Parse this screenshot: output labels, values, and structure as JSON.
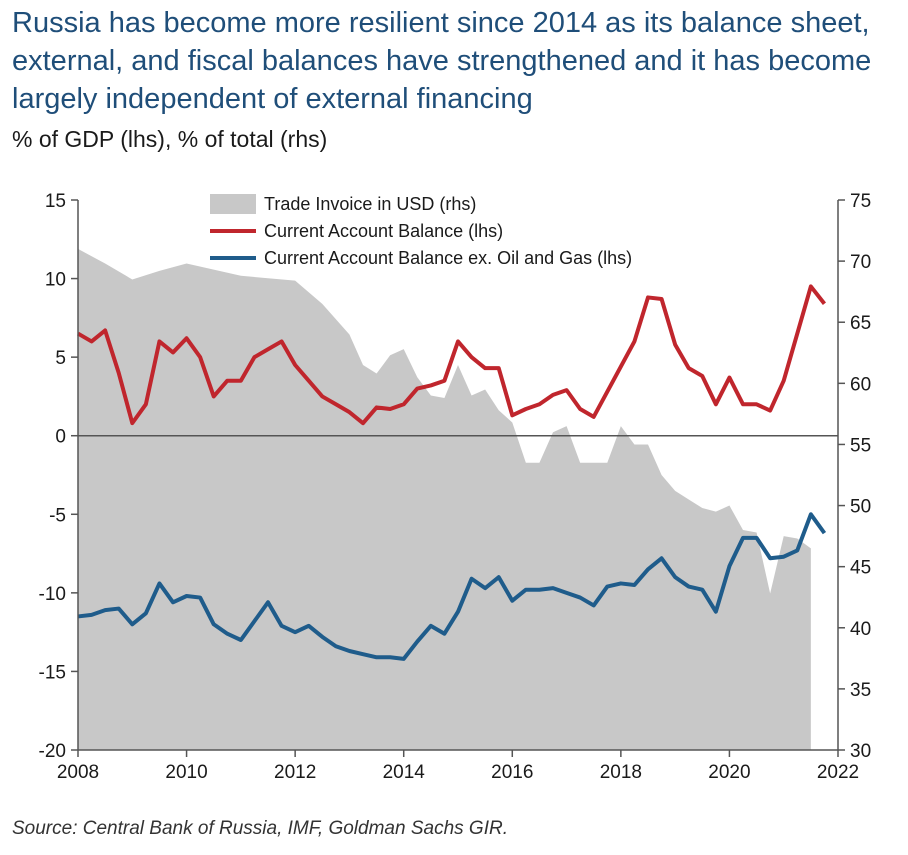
{
  "title": "Russia has become more resilient since 2014 as its balance sheet, external, and fiscal balances have strengthened and it has become largely independent of external financing",
  "subtitle": "% of GDP (lhs), % of total (rhs)",
  "source": "Source: Central Bank of Russia, IMF, Goldman Sachs GIR.",
  "colors": {
    "area": "#c8c8c8",
    "red": "#c0262d",
    "blue": "#1f5c8b",
    "axis": "#555555"
  },
  "chart_data": {
    "type": "line",
    "x_ticks": [
      "2008",
      "2010",
      "2012",
      "2014",
      "2016",
      "2018",
      "2020",
      "2022"
    ],
    "xlim": [
      2008,
      2022
    ],
    "ylim_left": [
      -20,
      15
    ],
    "yticks_left": [
      "15",
      "10",
      "5",
      "0",
      "-5",
      "-10",
      "-15",
      "-20"
    ],
    "ylim_right": [
      30,
      75
    ],
    "yticks_right": [
      "75",
      "70",
      "65",
      "60",
      "55",
      "50",
      "45",
      "40",
      "35",
      "30"
    ],
    "legend": [
      "Trade Invoice in USD (rhs)",
      "Current Account Balance (lhs)",
      "Current Account Balance ex. Oil and Gas (lhs)"
    ],
    "legend_position": "top-center",
    "series": [
      {
        "name": "Trade Invoice in USD (rhs)",
        "type": "area",
        "axis": "right",
        "x": [
          2008.0,
          2008.5,
          2009.0,
          2009.5,
          2010.0,
          2010.5,
          2011.0,
          2011.5,
          2012.0,
          2012.5,
          2013.0,
          2013.25,
          2013.5,
          2013.75,
          2014.0,
          2014.25,
          2014.5,
          2014.75,
          2015.0,
          2015.25,
          2015.5,
          2015.75,
          2016.0,
          2016.25,
          2016.5,
          2016.75,
          2017.0,
          2017.25,
          2017.5,
          2017.75,
          2018.0,
          2018.25,
          2018.5,
          2018.75,
          2019.0,
          2019.25,
          2019.5,
          2019.75,
          2020.0,
          2020.25,
          2020.5,
          2020.75,
          2021.0,
          2021.25,
          2021.5
        ],
        "values": [
          71,
          69.8,
          68.5,
          69.2,
          69.8,
          69.3,
          68.8,
          68.6,
          68.4,
          66.5,
          64,
          61.5,
          60.8,
          62.3,
          62.8,
          60.5,
          59,
          58.8,
          61.5,
          59,
          59.5,
          57.8,
          56.8,
          53.5,
          53.5,
          56,
          56.5,
          53.5,
          53.5,
          53.5,
          56.5,
          55,
          55,
          52.5,
          51.2,
          50.5,
          49.8,
          49.5,
          50,
          48,
          47.8,
          42.8,
          47.5,
          47.3,
          46.5
        ]
      },
      {
        "name": "Current Account Balance (lhs)",
        "type": "line",
        "axis": "left",
        "x": [
          2008.0,
          2008.25,
          2008.5,
          2008.75,
          2009.0,
          2009.25,
          2009.5,
          2009.75,
          2010.0,
          2010.25,
          2010.5,
          2010.75,
          2011.0,
          2011.25,
          2011.5,
          2011.75,
          2012.0,
          2012.25,
          2012.5,
          2012.75,
          2013.0,
          2013.25,
          2013.5,
          2013.75,
          2014.0,
          2014.25,
          2014.5,
          2014.75,
          2015.0,
          2015.25,
          2015.5,
          2015.75,
          2016.0,
          2016.25,
          2016.5,
          2016.75,
          2017.0,
          2017.25,
          2017.5,
          2017.75,
          2018.0,
          2018.25,
          2018.5,
          2018.75,
          2019.0,
          2019.25,
          2019.5,
          2019.75,
          2020.0,
          2020.25,
          2020.5,
          2020.75,
          2021.0,
          2021.25,
          2021.5,
          2021.75
        ],
        "values": [
          6.5,
          6,
          6.7,
          4,
          0.8,
          2,
          6,
          5.3,
          6.2,
          5,
          2.5,
          3.5,
          3.5,
          5,
          5.5,
          6,
          4.5,
          3.5,
          2.5,
          2,
          1.5,
          0.8,
          1.8,
          1.7,
          2,
          3,
          3.2,
          3.5,
          6,
          5,
          4.3,
          4.3,
          1.3,
          1.7,
          2,
          2.6,
          2.9,
          1.7,
          1.2,
          2.8,
          4.4,
          6,
          8.8,
          8.7,
          5.8,
          4.3,
          3.8,
          2,
          3.7,
          2,
          2,
          1.6,
          3.5,
          6.5,
          9.5,
          8.4
        ]
      },
      {
        "name": "Current Account Balance ex. Oil and Gas (lhs)",
        "type": "line",
        "axis": "left",
        "x": [
          2008.0,
          2008.25,
          2008.5,
          2008.75,
          2009.0,
          2009.25,
          2009.5,
          2009.75,
          2010.0,
          2010.25,
          2010.5,
          2010.75,
          2011.0,
          2011.25,
          2011.5,
          2011.75,
          2012.0,
          2012.25,
          2012.5,
          2012.75,
          2013.0,
          2013.25,
          2013.5,
          2013.75,
          2014.0,
          2014.25,
          2014.5,
          2014.75,
          2015.0,
          2015.25,
          2015.5,
          2015.75,
          2016.0,
          2016.25,
          2016.5,
          2016.75,
          2017.0,
          2017.25,
          2017.5,
          2017.75,
          2018.0,
          2018.25,
          2018.5,
          2018.75,
          2019.0,
          2019.25,
          2019.5,
          2019.75,
          2020.0,
          2020.25,
          2020.5,
          2020.75,
          2021.0,
          2021.25,
          2021.5,
          2021.75
        ],
        "values": [
          -11.5,
          -11.4,
          -11.1,
          -11,
          -12,
          -11.3,
          -9.4,
          -10.6,
          -10.2,
          -10.3,
          -12,
          -12.6,
          -13,
          -11.8,
          -10.6,
          -12.1,
          -12.5,
          -12.1,
          -12.8,
          -13.4,
          -13.7,
          -13.9,
          -14.1,
          -14.1,
          -14.2,
          -13.1,
          -12.1,
          -12.6,
          -11.2,
          -9.1,
          -9.7,
          -9,
          -10.5,
          -9.8,
          -9.8,
          -9.7,
          -10,
          -10.3,
          -10.8,
          -9.6,
          -9.4,
          -9.5,
          -8.5,
          -7.8,
          -9,
          -9.6,
          -9.8,
          -11.2,
          -8.3,
          -6.5,
          -6.5,
          -7.8,
          -7.7,
          -7.3,
          -5,
          -6.2
        ]
      }
    ]
  }
}
